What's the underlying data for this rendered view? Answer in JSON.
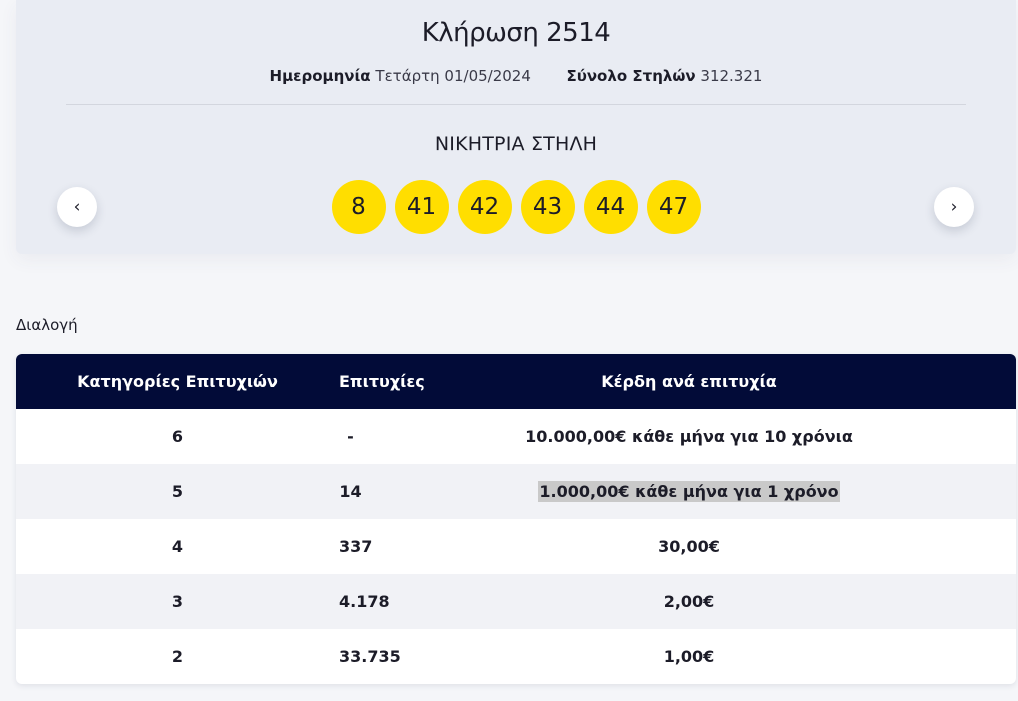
{
  "draw": {
    "title": "Κλήρωση 2514",
    "date_label": "Ημερομηνία",
    "date_value": "Τετάρτη 01/05/2024",
    "columns_label": "Σύνολο Στηλών",
    "columns_value": "312.321",
    "winning_label": "ΝΙΚΗΤΡΙΑ ΣΤΗΛΗ",
    "numbers": [
      "8",
      "41",
      "42",
      "43",
      "44",
      "47"
    ],
    "prev_icon": "‹",
    "next_icon": "›"
  },
  "section": {
    "label": "Διαλογή"
  },
  "table": {
    "headers": [
      "Κατηγορίες Επιτυχιών",
      "Επιτυχίες",
      "Κέρδη ανά επιτυχία"
    ],
    "rows": [
      {
        "category": "6",
        "winners": "-",
        "prize": "10.000,00€ κάθε μήνα για 10 χρόνια"
      },
      {
        "category": "5",
        "winners": "14",
        "prize": "1.000,00€ κάθε μήνα για 1 χρόνο"
      },
      {
        "category": "4",
        "winners": "337",
        "prize": "30,00€"
      },
      {
        "category": "3",
        "winners": "4.178",
        "prize": "2,00€"
      },
      {
        "category": "2",
        "winners": "33.735",
        "prize": "1,00€"
      }
    ]
  },
  "colors": {
    "ball": "#ffde00",
    "header_bg": "#020b38",
    "card_bg": "#e9ecf3"
  }
}
